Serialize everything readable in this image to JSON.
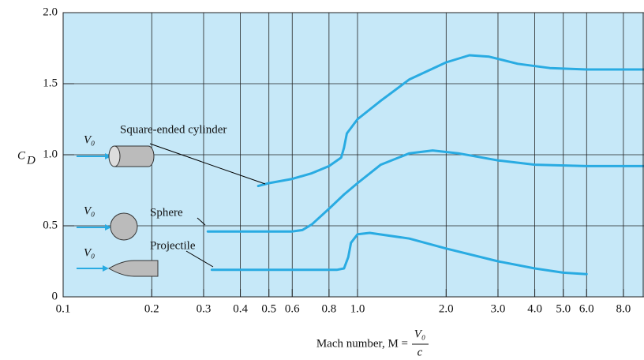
{
  "chart_data": {
    "type": "line",
    "series": [
      {
        "name": "Square-ended cylinder",
        "color": "#29abe2",
        "x": [
          0.46,
          0.5,
          0.6,
          0.7,
          0.8,
          0.88,
          0.9,
          0.92,
          1.0,
          1.2,
          1.5,
          2.0,
          2.4,
          2.8,
          3.5,
          4.5,
          6.0,
          9.4
        ],
        "values": [
          0.78,
          0.8,
          0.83,
          0.87,
          0.92,
          0.98,
          1.05,
          1.15,
          1.25,
          1.38,
          1.53,
          1.65,
          1.7,
          1.69,
          1.64,
          1.61,
          1.6,
          1.6
        ]
      },
      {
        "name": "Sphere",
        "color": "#29abe2",
        "x": [
          0.31,
          0.4,
          0.6,
          0.65,
          0.7,
          0.8,
          0.9,
          1.0,
          1.2,
          1.5,
          1.8,
          2.2,
          3.0,
          4.0,
          6.0,
          9.4
        ],
        "values": [
          0.46,
          0.46,
          0.46,
          0.47,
          0.51,
          0.62,
          0.72,
          0.8,
          0.93,
          1.01,
          1.03,
          1.01,
          0.96,
          0.93,
          0.92,
          0.92
        ]
      },
      {
        "name": "Projectile",
        "color": "#29abe2",
        "x": [
          0.32,
          0.5,
          0.85,
          0.9,
          0.93,
          0.95,
          1.0,
          1.1,
          1.5,
          2.0,
          3.0,
          4.0,
          5.0,
          6.0
        ],
        "values": [
          0.19,
          0.19,
          0.19,
          0.2,
          0.28,
          0.38,
          0.44,
          0.45,
          0.41,
          0.34,
          0.25,
          0.2,
          0.17,
          0.16
        ]
      }
    ],
    "v0_labels": [
      "V₀",
      "V₀",
      "V₀"
    ],
    "ylabel": {
      "main": "C",
      "sub": "D"
    },
    "xlabel": {
      "text": "Mach number, M =",
      "numerator": "V₀",
      "denominator": "c"
    },
    "xscale": "log",
    "xlim": [
      0.1,
      9.4
    ],
    "xticks": [
      0.1,
      0.2,
      0.3,
      0.4,
      0.5,
      0.6,
      0.8,
      {
        "value": 1,
        "label": "1.0"
      },
      {
        "value": 2,
        "label": "2.0"
      },
      {
        "value": 3,
        "label": "3.0"
      },
      {
        "value": 4,
        "label": "4.0"
      },
      {
        "value": 5,
        "label": "5.0"
      },
      {
        "value": 6,
        "label": "6.0"
      },
      {
        "value": 8,
        "label": "8.0"
      }
    ],
    "ylim": [
      0,
      2
    ],
    "yticks": [
      0,
      0.5,
      {
        "value": 1,
        "label": "1.0"
      },
      1.5,
      {
        "value": 2,
        "label": "2.0"
      }
    ],
    "grid": true
  }
}
